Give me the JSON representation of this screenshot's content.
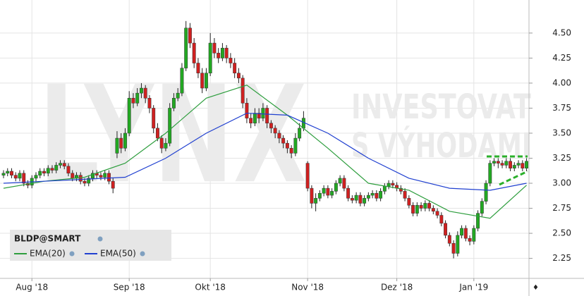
{
  "chart_data": {
    "type": "candlestick",
    "watermark": [
      "LYNX",
      "INVESTOVAT",
      "S VÝHODAMI"
    ],
    "symbol": "BLDP@SMART",
    "up_color": "#22a822",
    "down_color": "#d02020",
    "xlim": [
      -0.87,
      129.6
    ],
    "ylim": [
      2.05,
      4.83
    ],
    "xticks": [
      {
        "value": 7,
        "label": "Aug '18"
      },
      {
        "value": 31,
        "label": "Sep '18"
      },
      {
        "value": 51,
        "label": "Okt '18"
      },
      {
        "value": 75,
        "label": "Nov '18"
      },
      {
        "value": 97,
        "label": "Dez '18"
      },
      {
        "value": 116,
        "label": "Jan '19"
      }
    ],
    "yticks": [
      2.25,
      {
        "value": 2.5,
        "label": "2.50"
      },
      2.75,
      {
        "value": 3,
        "label": "3.00"
      },
      3.25,
      {
        "value": 3.5,
        "label": "3.50"
      },
      3.75,
      {
        "value": 4,
        "label": "4.00"
      },
      4.25,
      {
        "value": 4.5,
        "label": "4.50"
      }
    ],
    "grid": true,
    "candles": [
      [
        3.08,
        3.13,
        3.05,
        3.1
      ],
      [
        3.1,
        3.15,
        3.07,
        3.12
      ],
      [
        3.12,
        3.15,
        3.05,
        3.08
      ],
      [
        3.08,
        3.11,
        3.02,
        3.05
      ],
      [
        3.05,
        3.13,
        3.02,
        3.1
      ],
      [
        3.1,
        3.13,
        2.97,
        3.0
      ],
      [
        3.0,
        3.03,
        2.95,
        2.98
      ],
      [
        2.98,
        3.08,
        2.95,
        3.05
      ],
      [
        3.05,
        3.11,
        3.02,
        3.08
      ],
      [
        3.08,
        3.15,
        3.05,
        3.12
      ],
      [
        3.12,
        3.15,
        3.07,
        3.1
      ],
      [
        3.1,
        3.18,
        3.07,
        3.15
      ],
      [
        3.15,
        3.18,
        3.1,
        3.13
      ],
      [
        3.13,
        3.21,
        3.1,
        3.18
      ],
      [
        3.18,
        3.23,
        3.15,
        3.2
      ],
      [
        3.2,
        3.23,
        3.14,
        3.17
      ],
      [
        3.17,
        3.2,
        3.07,
        3.1
      ],
      [
        3.1,
        3.13,
        3.02,
        3.05
      ],
      [
        3.05,
        3.11,
        3.02,
        3.08
      ],
      [
        3.08,
        3.11,
        2.99,
        3.02
      ],
      [
        3.02,
        3.05,
        2.97,
        3.0
      ],
      [
        3.0,
        3.08,
        2.97,
        3.05
      ],
      [
        3.05,
        3.13,
        3.02,
        3.1
      ],
      [
        3.1,
        3.13,
        3.05,
        3.08
      ],
      [
        3.08,
        3.11,
        3.03,
        3.06
      ],
      [
        3.06,
        3.13,
        3.03,
        3.1
      ],
      [
        3.1,
        3.13,
        2.99,
        3.02
      ],
      [
        3.02,
        3.05,
        2.9,
        2.95
      ],
      [
        3.3,
        3.52,
        3.25,
        3.45
      ],
      [
        3.45,
        3.5,
        3.3,
        3.35
      ],
      [
        3.35,
        3.55,
        3.32,
        3.5
      ],
      [
        3.5,
        3.92,
        3.47,
        3.85
      ],
      [
        3.85,
        3.9,
        3.75,
        3.8
      ],
      [
        3.8,
        3.95,
        3.77,
        3.9
      ],
      [
        3.9,
        4.0,
        3.85,
        3.95
      ],
      [
        3.95,
        3.98,
        3.8,
        3.85
      ],
      [
        3.85,
        3.88,
        3.7,
        3.75
      ],
      [
        3.75,
        3.78,
        3.5,
        3.55
      ],
      [
        3.55,
        3.6,
        3.42,
        3.45
      ],
      [
        3.45,
        3.48,
        3.3,
        3.35
      ],
      [
        3.35,
        3.45,
        3.32,
        3.4
      ],
      [
        3.4,
        3.8,
        3.37,
        3.75
      ],
      [
        3.75,
        3.9,
        3.72,
        3.85
      ],
      [
        3.85,
        3.95,
        3.82,
        3.9
      ],
      [
        3.9,
        4.2,
        3.87,
        4.15
      ],
      [
        4.15,
        4.62,
        4.12,
        4.55
      ],
      [
        4.55,
        4.6,
        4.35,
        4.4
      ],
      [
        4.4,
        4.45,
        4.15,
        4.2
      ],
      [
        4.2,
        4.25,
        4.05,
        4.1
      ],
      [
        4.1,
        4.15,
        3.9,
        3.95
      ],
      [
        3.95,
        4.15,
        3.92,
        4.1
      ],
      [
        4.1,
        4.5,
        4.07,
        4.4
      ],
      [
        4.4,
        4.45,
        4.25,
        4.3
      ],
      [
        4.3,
        4.35,
        4.2,
        4.25
      ],
      [
        4.25,
        4.4,
        4.22,
        4.35
      ],
      [
        4.35,
        4.38,
        4.2,
        4.25
      ],
      [
        4.25,
        4.3,
        4.15,
        4.2
      ],
      [
        4.2,
        4.25,
        4.05,
        4.1
      ],
      [
        4.1,
        4.15,
        4.0,
        4.05
      ],
      [
        4.05,
        4.08,
        3.75,
        3.8
      ],
      [
        3.8,
        3.85,
        3.6,
        3.65
      ],
      [
        3.65,
        3.7,
        3.55,
        3.6
      ],
      [
        3.6,
        3.75,
        3.57,
        3.7
      ],
      [
        3.7,
        3.75,
        3.6,
        3.65
      ],
      [
        3.65,
        3.8,
        3.62,
        3.75
      ],
      [
        3.75,
        3.78,
        3.55,
        3.6
      ],
      [
        3.6,
        3.63,
        3.5,
        3.55
      ],
      [
        3.55,
        3.58,
        3.45,
        3.5
      ],
      [
        3.5,
        3.53,
        3.4,
        3.45
      ],
      [
        3.45,
        3.48,
        3.35,
        3.4
      ],
      [
        3.4,
        3.43,
        3.3,
        3.35
      ],
      [
        3.35,
        3.38,
        3.25,
        3.3
      ],
      [
        3.3,
        3.5,
        3.27,
        3.45
      ],
      [
        3.45,
        3.6,
        3.42,
        3.55
      ],
      [
        3.55,
        3.72,
        3.52,
        3.65
      ],
      [
        3.2,
        3.22,
        2.92,
        2.95
      ],
      [
        2.95,
        2.98,
        2.75,
        2.8
      ],
      [
        2.8,
        2.9,
        2.72,
        2.85
      ],
      [
        2.85,
        2.93,
        2.82,
        2.9
      ],
      [
        2.9,
        2.98,
        2.87,
        2.95
      ],
      [
        2.95,
        2.98,
        2.85,
        2.88
      ],
      [
        2.88,
        2.95,
        2.85,
        2.92
      ],
      [
        2.92,
        3.03,
        2.89,
        3.0
      ],
      [
        3.0,
        3.08,
        2.97,
        3.05
      ],
      [
        3.05,
        3.08,
        2.92,
        2.95
      ],
      [
        2.95,
        2.98,
        2.82,
        2.85
      ],
      [
        2.85,
        2.88,
        2.8,
        2.83
      ],
      [
        2.83,
        2.91,
        2.8,
        2.88
      ],
      [
        2.88,
        2.91,
        2.77,
        2.8
      ],
      [
        2.8,
        2.88,
        2.77,
        2.85
      ],
      [
        2.85,
        2.91,
        2.82,
        2.88
      ],
      [
        2.88,
        2.93,
        2.85,
        2.9
      ],
      [
        2.9,
        2.93,
        2.82,
        2.85
      ],
      [
        2.85,
        2.95,
        2.82,
        2.92
      ],
      [
        2.92,
        3.0,
        2.89,
        2.97
      ],
      [
        2.97,
        3.03,
        2.94,
        3.0
      ],
      [
        3.0,
        3.03,
        2.95,
        2.98
      ],
      [
        2.98,
        3.01,
        2.92,
        2.95
      ],
      [
        2.95,
        2.98,
        2.89,
        2.92
      ],
      [
        2.92,
        2.95,
        2.82,
        2.85
      ],
      [
        2.85,
        2.88,
        2.75,
        2.78
      ],
      [
        2.78,
        2.81,
        2.67,
        2.7
      ],
      [
        2.7,
        2.81,
        2.67,
        2.78
      ],
      [
        2.78,
        2.81,
        2.72,
        2.75
      ],
      [
        2.75,
        2.83,
        2.72,
        2.8
      ],
      [
        2.8,
        2.83,
        2.72,
        2.75
      ],
      [
        2.75,
        2.78,
        2.69,
        2.72
      ],
      [
        2.72,
        2.75,
        2.65,
        2.68
      ],
      [
        2.68,
        2.71,
        2.57,
        2.6
      ],
      [
        2.6,
        2.63,
        2.45,
        2.48
      ],
      [
        2.48,
        2.51,
        2.37,
        2.4
      ],
      [
        2.4,
        2.43,
        2.25,
        2.3
      ],
      [
        2.3,
        2.52,
        2.27,
        2.48
      ],
      [
        2.48,
        2.58,
        2.45,
        2.55
      ],
      [
        2.55,
        2.58,
        2.42,
        2.45
      ],
      [
        2.45,
        2.48,
        2.38,
        2.42
      ],
      [
        2.42,
        2.58,
        2.39,
        2.55
      ],
      [
        2.55,
        2.73,
        2.52,
        2.7
      ],
      [
        2.7,
        2.85,
        2.67,
        2.82
      ],
      [
        2.82,
        3.03,
        2.79,
        3.0
      ],
      [
        3.0,
        3.23,
        2.97,
        3.2
      ],
      [
        3.2,
        3.25,
        3.17,
        3.22
      ],
      [
        3.22,
        3.25,
        3.15,
        3.2
      ],
      [
        3.2,
        3.23,
        3.15,
        3.18
      ],
      [
        3.18,
        3.25,
        3.15,
        3.22
      ],
      [
        3.22,
        3.25,
        3.12,
        3.15
      ],
      [
        3.15,
        3.21,
        3.12,
        3.18
      ],
      [
        3.18,
        3.23,
        3.15,
        3.2
      ],
      [
        3.2,
        3.23,
        3.12,
        3.15
      ],
      [
        3.15,
        3.25,
        3.12,
        3.22
      ]
    ],
    "series": [
      {
        "name": "EMA(20)",
        "color": "#2e9e3e",
        "x": [
          0,
          10,
          20,
          30,
          40,
          50,
          60,
          70,
          80,
          90,
          100,
          110,
          120,
          129
        ],
        "values": [
          2.95,
          3.02,
          3.06,
          3.2,
          3.5,
          3.85,
          3.98,
          3.68,
          3.35,
          3.0,
          2.93,
          2.72,
          2.65,
          2.98
        ]
      },
      {
        "name": "EMA(50)",
        "color": "#2040d0",
        "x": [
          0,
          10,
          20,
          30,
          40,
          50,
          60,
          70,
          80,
          90,
          100,
          110,
          120,
          129
        ],
        "values": [
          3.0,
          3.02,
          3.04,
          3.06,
          3.25,
          3.5,
          3.7,
          3.68,
          3.5,
          3.25,
          3.05,
          2.95,
          2.93,
          3.0
        ]
      }
    ]
  }
}
